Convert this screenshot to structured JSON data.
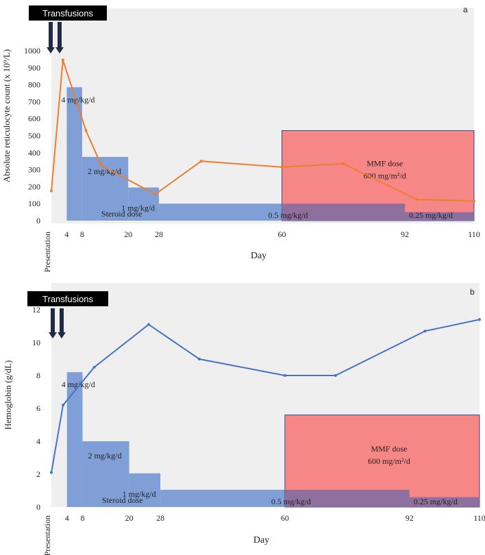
{
  "colors": {
    "plot_bg": "#efefef",
    "steroid_fill": "#7f9fd6",
    "mmf_fill": "#f77f7f",
    "mmf_border": "#304a8c",
    "overlap_fill": "#8e6f9e",
    "reticulocyte_line": "#ed7d31",
    "hemoglobin_line": "#4472c4",
    "badge_bg": "#000000",
    "arrow": "#1f2a44"
  },
  "chart_data": [
    {
      "type": "line",
      "panel_label": "a",
      "badge": "Transfusions",
      "ylabel": "Absolute reticulocyte count (x 10⁹/L)",
      "xlabel": "Day",
      "ylim": [
        0,
        1000
      ],
      "yticks": [
        "0",
        "100",
        "200",
        "300",
        "400",
        "500",
        "600",
        "700",
        "800",
        "900",
        "1000"
      ],
      "xlim": [
        0,
        110
      ],
      "xticks": [
        {
          "label": "Presentation",
          "x": 0
        },
        {
          "label": "4",
          "x": 4
        },
        {
          "label": "8",
          "x": 8
        },
        {
          "label": "20",
          "x": 20
        },
        {
          "label": "28",
          "x": 28
        },
        {
          "label": "60",
          "x": 60
        },
        {
          "label": "92",
          "x": 92
        },
        {
          "label": "110",
          "x": 110
        }
      ],
      "series": [
        {
          "x": [
            0,
            3,
            9,
            13,
            27,
            39,
            60,
            76,
            95,
            110
          ],
          "y": [
            175,
            945,
            530,
            325,
            155,
            350,
            315,
            335,
            125,
            115
          ]
        }
      ],
      "steroid_dose_steps": [
        {
          "x0": 4,
          "x1": 8,
          "level": 785,
          "label": "4 mg/kg/d"
        },
        {
          "x0": 8,
          "x1": 20,
          "level": 375,
          "label": "2 mg/kg/d"
        },
        {
          "x0": 20,
          "x1": 28,
          "level": 195,
          "label": "1 mg/kg/d"
        },
        {
          "x0": 28,
          "x1": 92,
          "level": 100,
          "label": "0.5 mg/kg/d"
        },
        {
          "x0": 92,
          "x1": 110,
          "level": 50,
          "label": "0.25 mg/kg/d"
        }
      ],
      "steroid_label": "Steroid dose",
      "mmf_box": {
        "x0": 60,
        "x1": 110,
        "top": 530,
        "label_line1": "MMF dose",
        "label_line2": "600 mg/m²/d"
      }
    },
    {
      "type": "line",
      "panel_label": "b",
      "badge": "Transfusions",
      "ylabel": "Hemoglobin (g/dL)",
      "xlabel": "Day",
      "ylim": [
        0,
        12
      ],
      "yticks": [
        "0",
        "2",
        "4",
        "6",
        "8",
        "10",
        "12"
      ],
      "xlim": [
        0,
        110
      ],
      "xticks": [
        {
          "label": "Presentation",
          "x": 0
        },
        {
          "label": "4",
          "x": 4
        },
        {
          "label": "8",
          "x": 8
        },
        {
          "label": "20",
          "x": 20
        },
        {
          "label": "28",
          "x": 28
        },
        {
          "label": "60",
          "x": 60
        },
        {
          "label": "92",
          "x": 92
        },
        {
          "label": "110",
          "x": 110
        }
      ],
      "series": [
        {
          "x": [
            0,
            3,
            11,
            25,
            38,
            60,
            73,
            96,
            110
          ],
          "y": [
            2.1,
            6.2,
            8.5,
            11.1,
            9.0,
            8.0,
            8.0,
            10.7,
            11.4
          ]
        }
      ],
      "steroid_dose_steps": [
        {
          "x0": 4,
          "x1": 8,
          "level": 8.2,
          "label": "4 mg/kg/d"
        },
        {
          "x0": 8,
          "x1": 20,
          "level": 4.0,
          "label": "2 mg/kg/d"
        },
        {
          "x0": 20,
          "x1": 28,
          "level": 2.05,
          "label": "1 mg/kg/d"
        },
        {
          "x0": 28,
          "x1": 92,
          "level": 1.05,
          "label": "0.5 mg/kg/d"
        },
        {
          "x0": 92,
          "x1": 110,
          "level": 0.6,
          "label": "0.25 mg/kg/d"
        }
      ],
      "steroid_label": "Steroid dose",
      "mmf_box": {
        "x0": 60,
        "x1": 110,
        "top": 5.6,
        "label_line1": "MMF dose",
        "label_line2": "600 mg/m²/d"
      }
    }
  ]
}
